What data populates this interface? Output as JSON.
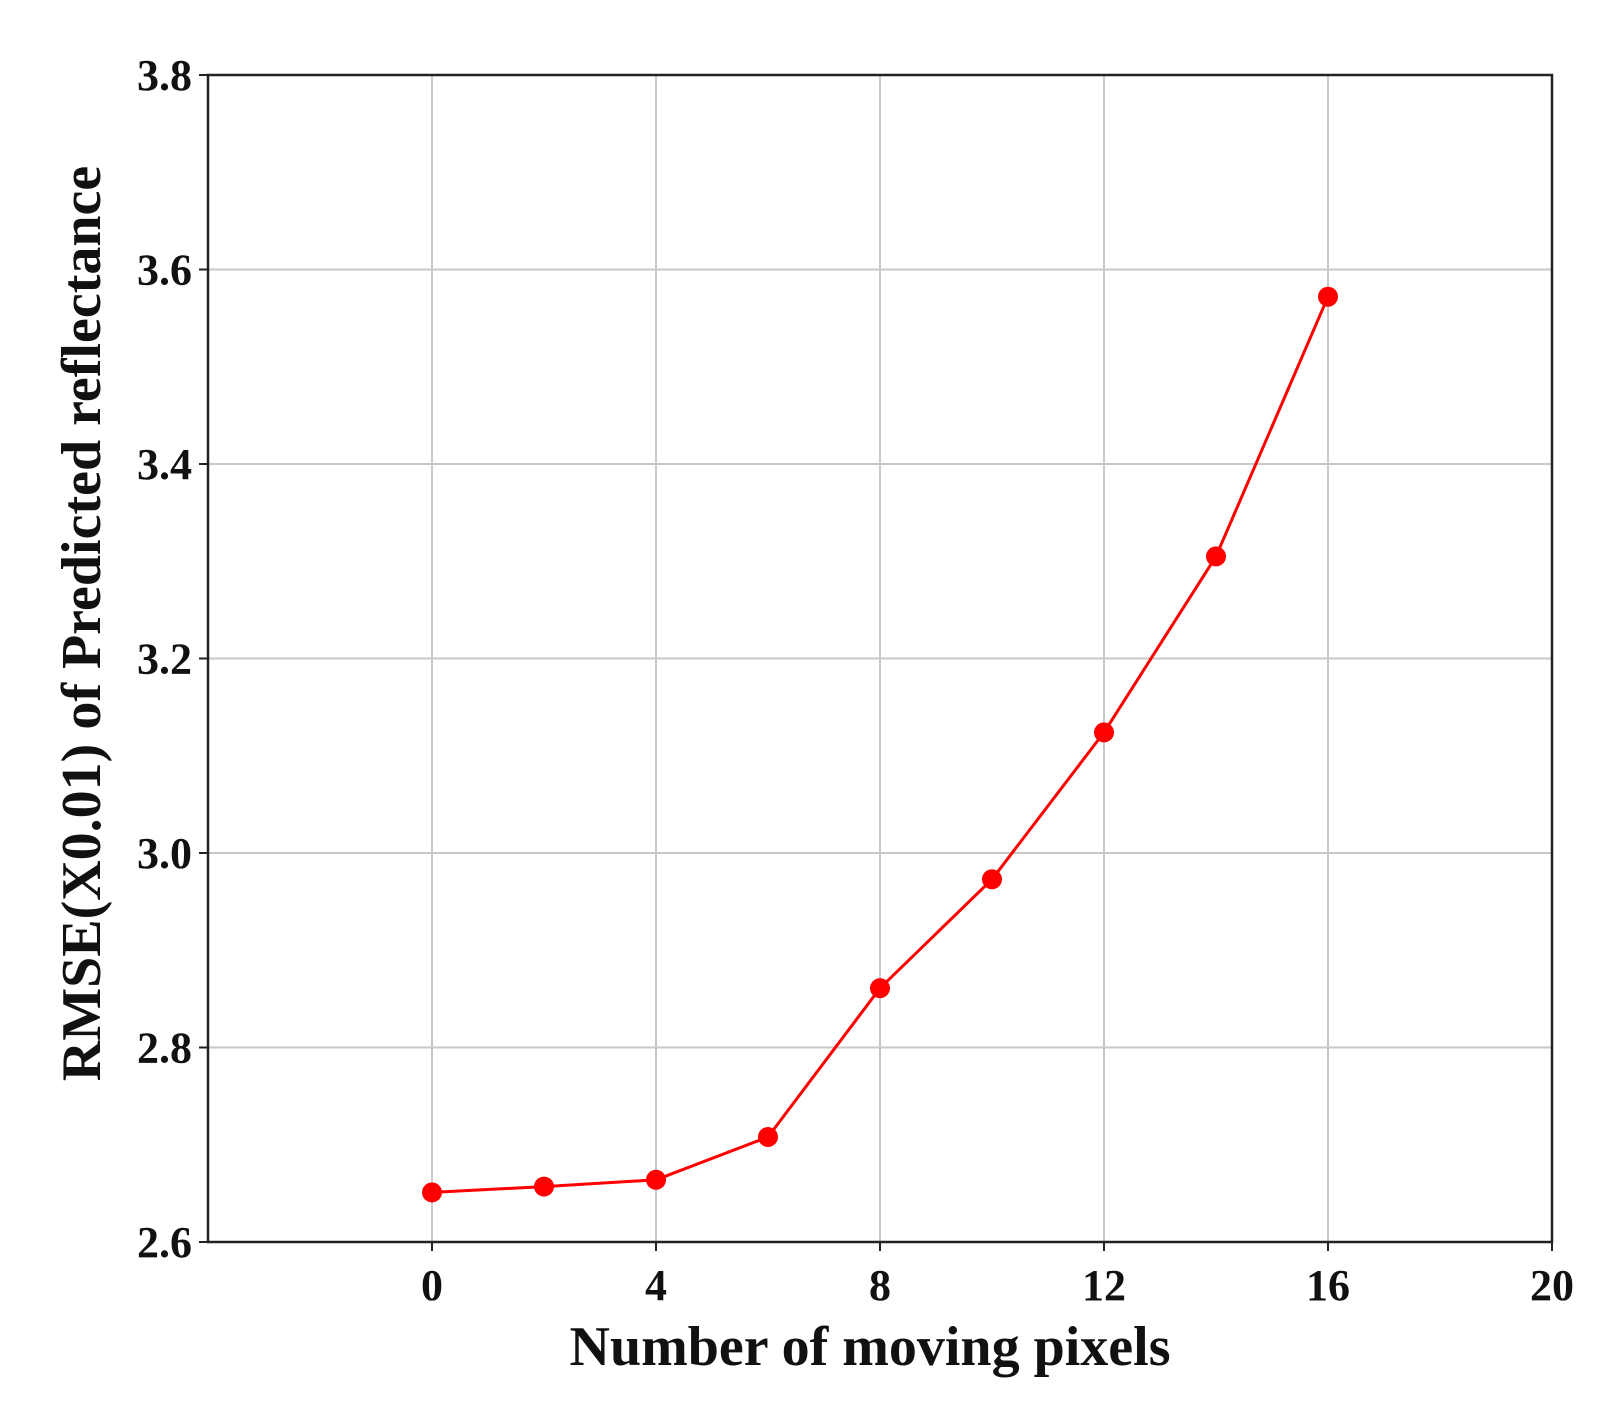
{
  "chart_data": {
    "type": "line",
    "xlabel": "Number of moving pixels",
    "ylabel": "RMSE(X0.01) of Predicted reflectance",
    "xlim": [
      -4,
      20
    ],
    "ylim": [
      2.6,
      3.8
    ],
    "x_ticks": [
      "0",
      "4",
      "8",
      "12",
      "16",
      "20"
    ],
    "x_tick_values": [
      0,
      4,
      8,
      12,
      16,
      20
    ],
    "y_ticks": [
      "2.6",
      "2.8",
      "3.0",
      "3.2",
      "3.4",
      "3.6",
      "3.8"
    ],
    "y_tick_values": [
      2.6,
      2.8,
      3.0,
      3.2,
      3.4,
      3.6,
      3.8
    ],
    "grid": true,
    "legend": false,
    "series": [
      {
        "color": "#ff0000",
        "marker": "circle",
        "x": [
          0,
          2,
          4,
          6,
          8,
          10,
          12,
          14,
          16
        ],
        "y": [
          2.651,
          2.657,
          2.664,
          2.708,
          2.861,
          2.973,
          3.124,
          3.305,
          3.572
        ]
      }
    ]
  }
}
